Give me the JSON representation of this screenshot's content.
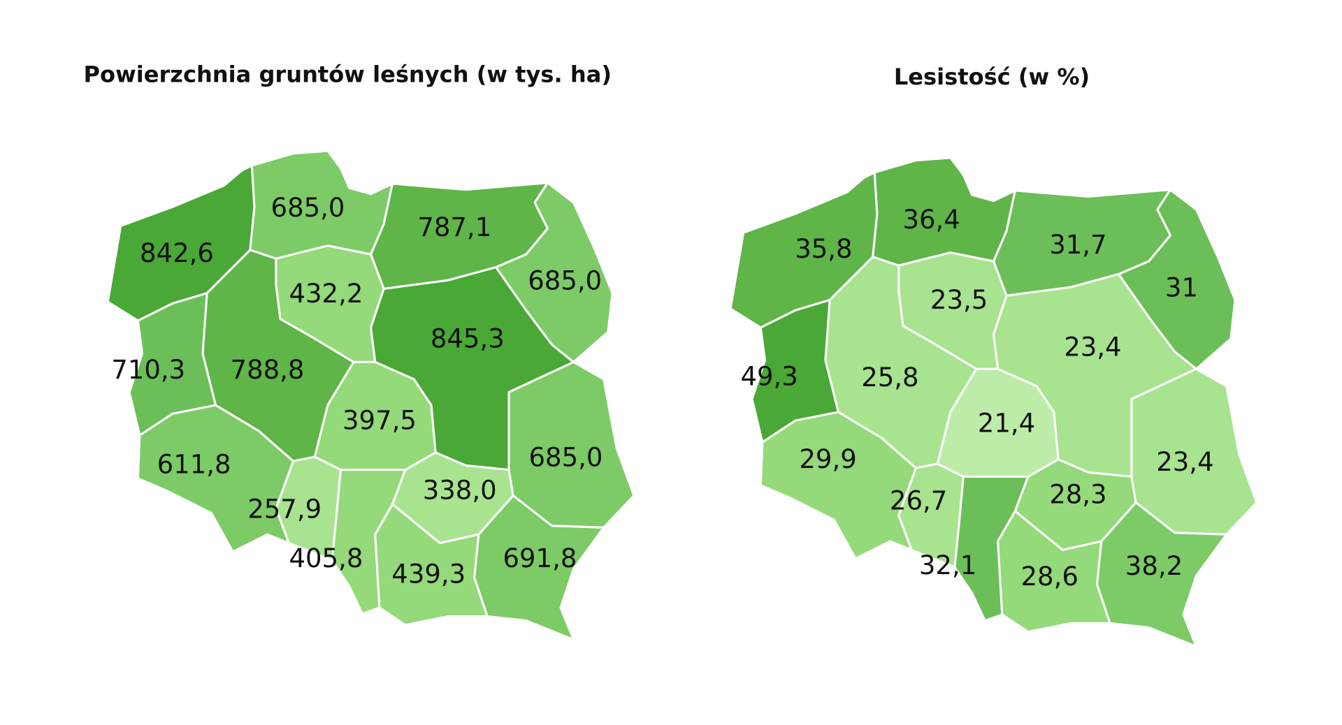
{
  "maps": [
    {
      "title": "Powierzchnia gruntów leśnych (w tys. ha)",
      "regions": [
        {
          "value": "842,6",
          "color": "#4aa836"
        },
        {
          "value": "685,0",
          "color": "#7dcb67"
        },
        {
          "value": "787,1",
          "color": "#5fb548"
        },
        {
          "value": "685,0",
          "color": "#7dcb67"
        },
        {
          "value": "432,2",
          "color": "#94d97a"
        },
        {
          "value": "788,8",
          "color": "#5fb548"
        },
        {
          "value": "710,3",
          "color": "#6cbf58"
        },
        {
          "value": "845,3",
          "color": "#4aa836"
        },
        {
          "value": "397,5",
          "color": "#94d97a"
        },
        {
          "value": "611,8",
          "color": "#7dcb67"
        },
        {
          "value": "257,9",
          "color": "#a8e390"
        },
        {
          "value": "405,8",
          "color": "#94d97a"
        },
        {
          "value": "338,0",
          "color": "#a8e390"
        },
        {
          "value": "685,0",
          "color": "#7dcb67"
        },
        {
          "value": "439,3",
          "color": "#94d97a"
        },
        {
          "value": "691,8",
          "color": "#7dcb67"
        }
      ]
    },
    {
      "title": "Lesistość (w %)",
      "regions": [
        {
          "value": "35,8",
          "color": "#5fb548"
        },
        {
          "value": "36,4",
          "color": "#5fb548"
        },
        {
          "value": "31,7",
          "color": "#6cbf58"
        },
        {
          "value": "31",
          "color": "#6cbf58"
        },
        {
          "value": "23,5",
          "color": "#a8e390"
        },
        {
          "value": "25,8",
          "color": "#a8e390"
        },
        {
          "value": "49,3",
          "color": "#4aa836"
        },
        {
          "value": "23,4",
          "color": "#a8e390"
        },
        {
          "value": "21,4",
          "color": "#bdeca8"
        },
        {
          "value": "29,9",
          "color": "#94d97a"
        },
        {
          "value": "26,7",
          "color": "#a8e390"
        },
        {
          "value": "32,1",
          "color": "#6cbf58"
        },
        {
          "value": "28,3",
          "color": "#94d97a"
        },
        {
          "value": "23,4",
          "color": "#a8e390"
        },
        {
          "value": "28,6",
          "color": "#94d97a"
        },
        {
          "value": "38,2",
          "color": "#7dcb67"
        }
      ]
    }
  ]
}
